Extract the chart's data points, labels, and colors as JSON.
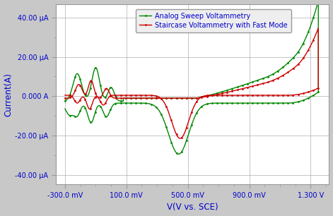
{
  "title": "",
  "xlabel": "V(V vs. SCE)",
  "ylabel": "Current(A)",
  "xlim": [
    -0.36,
    1.42
  ],
  "ylim": [
    -4.5e-05,
    4.7e-05
  ],
  "xticks": [
    -0.3,
    0.1,
    0.5,
    0.9,
    1.3
  ],
  "xtick_labels": [
    "-300.0 mV",
    "100.0 mV",
    "500.0 mV",
    "900.0 mV",
    "1.300 V"
  ],
  "yticks": [
    -4e-05,
    -2e-05,
    0.0,
    2e-05,
    4e-05
  ],
  "ytick_labels": [
    "-40.00 μA",
    "-20.00 μA",
    "0.000 A",
    "20.00 μA",
    "40.00 μA"
  ],
  "bg_color": "#c8c8c8",
  "plot_bg_color": "#ffffff",
  "red_color": "#cc0000",
  "green_color": "#008800",
  "legend_label_red": "Staircase Voltammetry with Fast Mode",
  "legend_label_green": "Analog Sweep Voltammetry",
  "grid_color": "#aaaaaa",
  "font_color": "#0000cc",
  "figsize": [
    4.71,
    3.06
  ],
  "dpi": 100
}
